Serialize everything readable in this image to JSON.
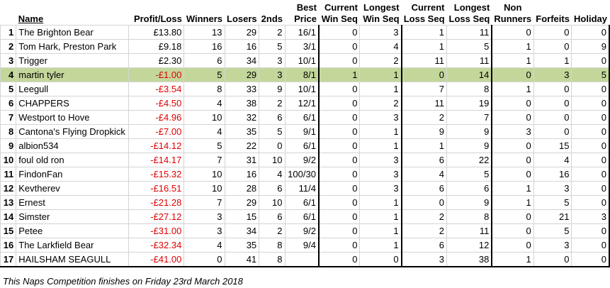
{
  "headers": {
    "pos": "",
    "name": "Name",
    "profit": "Profit/Loss",
    "winners": "Winners",
    "losers": "Losers",
    "seconds": "2nds",
    "best_price_1": "Best",
    "best_price_2": "Price",
    "cur_win_1": "Current",
    "cur_win_2": "Win Seq",
    "long_win_1": "Longest",
    "long_win_2": "Win Seq",
    "cur_loss_1": "Current",
    "cur_loss_2": "Loss Seq",
    "long_loss_1": "Longest",
    "long_loss_2": "Loss Seq",
    "non_1": "Non",
    "non_2": "Runners",
    "forfeits": "Forfeits",
    "holiday": "Holiday"
  },
  "rows": [
    {
      "pos": "1",
      "name": "The Brighton Bear",
      "profit": "£13.80",
      "winners": "13",
      "losers": "29",
      "seconds": "2",
      "best": "16/1",
      "cur_win": "0",
      "long_win": "3",
      "cur_loss": "1",
      "long_loss": "11",
      "non": "0",
      "forfeits": "0",
      "holiday": "0"
    },
    {
      "pos": "2",
      "name": "Tom Hark, Preston Park",
      "profit": "£9.18",
      "winners": "16",
      "losers": "16",
      "seconds": "5",
      "best": "3/1",
      "cur_win": "0",
      "long_win": "4",
      "cur_loss": "1",
      "long_loss": "5",
      "non": "1",
      "forfeits": "0",
      "holiday": "9"
    },
    {
      "pos": "3",
      "name": "Trigger",
      "profit": "£2.30",
      "winners": "6",
      "losers": "34",
      "seconds": "3",
      "best": "10/1",
      "cur_win": "0",
      "long_win": "2",
      "cur_loss": "11",
      "long_loss": "11",
      "non": "1",
      "forfeits": "1",
      "holiday": "0"
    },
    {
      "pos": "4",
      "name": "martin tyler",
      "profit": "-£1.00",
      "winners": "5",
      "losers": "29",
      "seconds": "3",
      "best": "8/1",
      "cur_win": "1",
      "long_win": "1",
      "cur_loss": "0",
      "long_loss": "14",
      "non": "0",
      "forfeits": "3",
      "holiday": "5"
    },
    {
      "pos": "5",
      "name": "Leegull",
      "profit": "-£3.54",
      "winners": "8",
      "losers": "33",
      "seconds": "9",
      "best": "10/1",
      "cur_win": "0",
      "long_win": "1",
      "cur_loss": "7",
      "long_loss": "8",
      "non": "1",
      "forfeits": "0",
      "holiday": "0"
    },
    {
      "pos": "6",
      "name": "CHAPPERS",
      "profit": "-£4.50",
      "winners": "4",
      "losers": "38",
      "seconds": "2",
      "best": "12/1",
      "cur_win": "0",
      "long_win": "2",
      "cur_loss": "11",
      "long_loss": "19",
      "non": "0",
      "forfeits": "0",
      "holiday": "0"
    },
    {
      "pos": "7",
      "name": "Westport to Hove",
      "profit": "-£4.96",
      "winners": "10",
      "losers": "32",
      "seconds": "6",
      "best": "6/1",
      "cur_win": "0",
      "long_win": "3",
      "cur_loss": "2",
      "long_loss": "7",
      "non": "0",
      "forfeits": "0",
      "holiday": "0"
    },
    {
      "pos": "8",
      "name": "Cantona's Flying Dropkick",
      "profit": "-£7.00",
      "winners": "4",
      "losers": "35",
      "seconds": "5",
      "best": "9/1",
      "cur_win": "0",
      "long_win": "1",
      "cur_loss": "9",
      "long_loss": "9",
      "non": "3",
      "forfeits": "0",
      "holiday": "0"
    },
    {
      "pos": "9",
      "name": "albion534",
      "profit": "-£14.12",
      "winners": "5",
      "losers": "22",
      "seconds": "0",
      "best": "6/1",
      "cur_win": "0",
      "long_win": "1",
      "cur_loss": "1",
      "long_loss": "9",
      "non": "0",
      "forfeits": "15",
      "holiday": "0"
    },
    {
      "pos": "10",
      "name": "foul old ron",
      "profit": "-£14.17",
      "winners": "7",
      "losers": "31",
      "seconds": "10",
      "best": "9/2",
      "cur_win": "0",
      "long_win": "3",
      "cur_loss": "6",
      "long_loss": "22",
      "non": "0",
      "forfeits": "4",
      "holiday": "0"
    },
    {
      "pos": "11",
      "name": "FindonFan",
      "profit": "-£15.32",
      "winners": "10",
      "losers": "16",
      "seconds": "4",
      "best": "100/30",
      "cur_win": "0",
      "long_win": "3",
      "cur_loss": "4",
      "long_loss": "5",
      "non": "0",
      "forfeits": "16",
      "holiday": "0"
    },
    {
      "pos": "12",
      "name": "Kevtherev",
      "profit": "-£16.51",
      "winners": "10",
      "losers": "28",
      "seconds": "6",
      "best": "11/4",
      "cur_win": "0",
      "long_win": "3",
      "cur_loss": "6",
      "long_loss": "6",
      "non": "1",
      "forfeits": "3",
      "holiday": "0"
    },
    {
      "pos": "13",
      "name": "Ernest",
      "profit": "-£21.28",
      "winners": "7",
      "losers": "29",
      "seconds": "10",
      "best": "6/1",
      "cur_win": "0",
      "long_win": "1",
      "cur_loss": "0",
      "long_loss": "9",
      "non": "1",
      "forfeits": "5",
      "holiday": "0"
    },
    {
      "pos": "14",
      "name": "Simster",
      "profit": "-£27.12",
      "winners": "3",
      "losers": "15",
      "seconds": "6",
      "best": "6/1",
      "cur_win": "0",
      "long_win": "1",
      "cur_loss": "2",
      "long_loss": "8",
      "non": "0",
      "forfeits": "21",
      "holiday": "3"
    },
    {
      "pos": "15",
      "name": "Petee",
      "profit": "-£31.00",
      "winners": "3",
      "losers": "34",
      "seconds": "2",
      "best": "9/2",
      "cur_win": "0",
      "long_win": "1",
      "cur_loss": "2",
      "long_loss": "11",
      "non": "0",
      "forfeits": "5",
      "holiday": "0"
    },
    {
      "pos": "16",
      "name": "The Larkfield Bear",
      "profit": "-£32.34",
      "winners": "4",
      "losers": "35",
      "seconds": "8",
      "best": "9/4",
      "cur_win": "0",
      "long_win": "1",
      "cur_loss": "6",
      "long_loss": "12",
      "non": "0",
      "forfeits": "3",
      "holiday": "0"
    },
    {
      "pos": "17",
      "name": "HAILSHAM SEAGULL",
      "profit": "-£41.00",
      "winners": "0",
      "losers": "41",
      "seconds": "8",
      "best": "",
      "cur_win": "0",
      "long_win": "0",
      "cur_loss": "3",
      "long_loss": "38",
      "non": "1",
      "forfeits": "0",
      "holiday": "0"
    }
  ],
  "highlight_row_pos": "4",
  "footer": "This Naps Competition finishes on Friday 23rd March 2018",
  "colors": {
    "highlight": "#c4d79b",
    "negative": "#e00000",
    "grid": "#d4d4d4"
  }
}
